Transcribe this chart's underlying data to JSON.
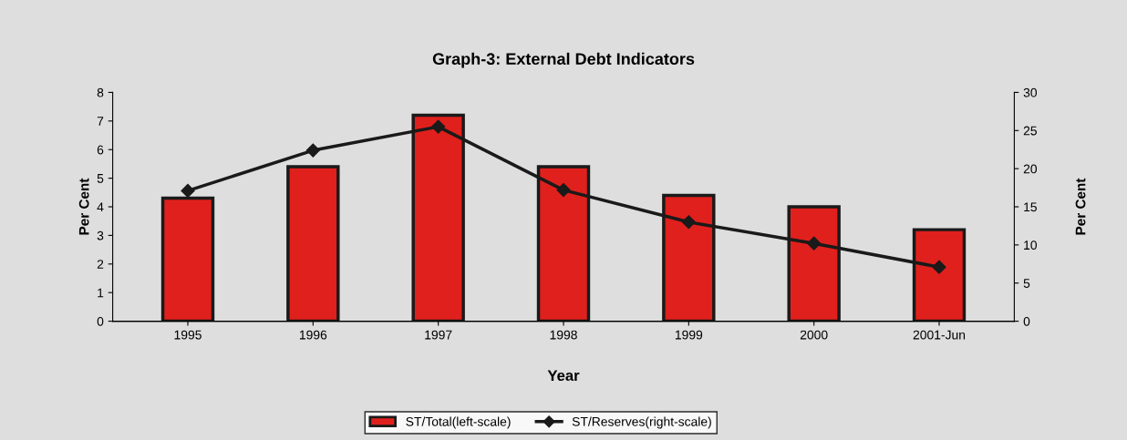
{
  "chart_data": {
    "type": "bar",
    "title": "Graph-3: External Debt Indicators",
    "xlabel": "Year",
    "ylabel": "Per Cent",
    "y2label": "Per Cent",
    "categories": [
      "1995",
      "1996",
      "1997",
      "1998",
      "1999",
      "2000",
      "2001-Jun"
    ],
    "series": [
      {
        "name": "ST/Total(left-scale)",
        "color": "#e0201c",
        "values": [
          4.3,
          5.4,
          7.2,
          5.4,
          4.4,
          4.0,
          3.2
        ]
      },
      {
        "name": "ST/Reserves(right-scale)",
        "type": "line",
        "axis": "y2",
        "color": "#1a1a1a",
        "marker": "diamond",
        "values": [
          17.1,
          22.4,
          25.5,
          17.2,
          13.0,
          10.2,
          7.1
        ]
      }
    ],
    "ylim": [
      0,
      8
    ],
    "yticks": [
      0,
      1,
      2,
      3,
      4,
      5,
      6,
      7,
      8
    ],
    "y2lim": [
      0,
      30
    ],
    "y2ticks": [
      0,
      5,
      10,
      15,
      20,
      25,
      30
    ],
    "grid": false,
    "legend": "bottom"
  }
}
